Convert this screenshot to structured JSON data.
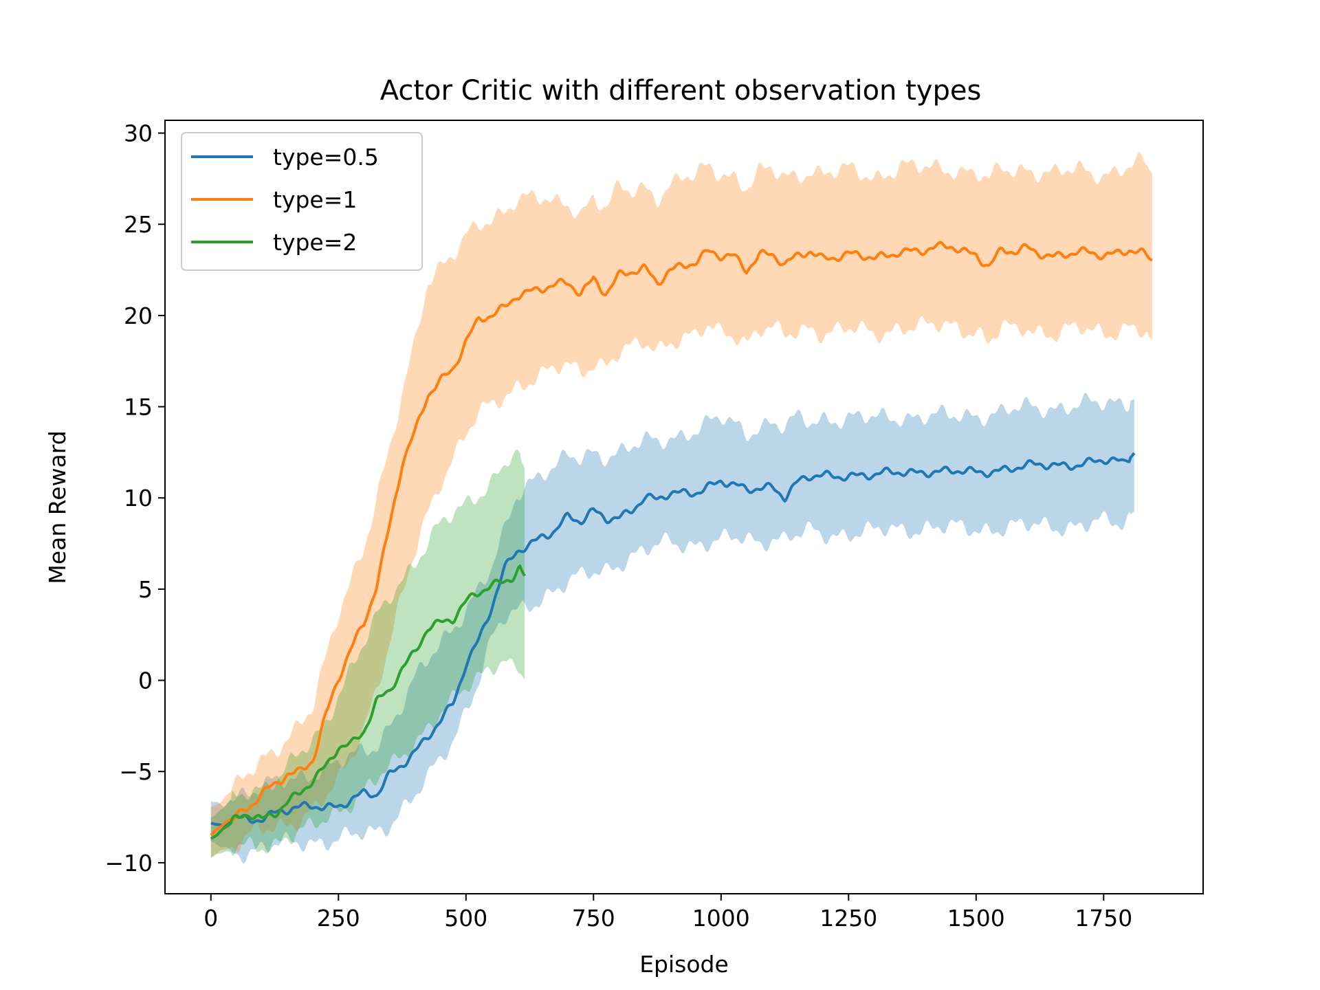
{
  "chart_data": {
    "type": "line",
    "title": "Actor Critic with different observation types",
    "xlabel": "Episode",
    "ylabel": "Mean Reward",
    "xlim": [
      -90,
      1945
    ],
    "ylim": [
      -11.7,
      30.7
    ],
    "xticks": [
      0,
      250,
      500,
      750,
      1000,
      1250,
      1500,
      1750
    ],
    "yticks": [
      -10,
      -5,
      0,
      5,
      10,
      15,
      20,
      25,
      30
    ],
    "xtick_labels": [
      "0",
      "250",
      "500",
      "750",
      "1000",
      "1250",
      "1500",
      "1750"
    ],
    "ytick_labels": [
      "−10",
      "−5",
      "0",
      "5",
      "10",
      "15",
      "20",
      "25",
      "30"
    ],
    "grid": false,
    "legend_position": "upper-left",
    "series": [
      {
        "name": "type=0.5",
        "color": "#1f77b4",
        "x": [
          0,
          25,
          50,
          75,
          100,
          150,
          200,
          250,
          300,
          325,
          350,
          375,
          400,
          425,
          450,
          475,
          500,
          525,
          550,
          575,
          600,
          625,
          650,
          675,
          700,
          725,
          750,
          775,
          800,
          825,
          850,
          875,
          900,
          950,
          1000,
          1025,
          1050,
          1075,
          1100,
          1125,
          1150,
          1175,
          1200,
          1250,
          1300,
          1350,
          1400,
          1450,
          1500,
          1550,
          1600,
          1650,
          1700,
          1750,
          1790,
          1810
        ],
        "y": [
          -7.9,
          -8.0,
          -7.4,
          -7.6,
          -7.5,
          -7.2,
          -6.8,
          -6.9,
          -6.3,
          -6.3,
          -5.1,
          -4.5,
          -3.9,
          -3.2,
          -2.3,
          -1.3,
          1.0,
          2.3,
          4.0,
          6.0,
          7.0,
          7.4,
          8.0,
          8.3,
          9.0,
          8.6,
          9.2,
          8.9,
          9.0,
          9.4,
          10.0,
          9.8,
          10.2,
          10.4,
          10.9,
          10.6,
          10.4,
          10.6,
          10.7,
          10.1,
          10.8,
          11.1,
          11.2,
          11.3,
          11.2,
          11.4,
          11.5,
          11.4,
          11.4,
          11.6,
          11.7,
          11.8,
          11.9,
          12.0,
          11.9,
          12.5
        ],
        "lower": [
          -8.8,
          -9.2,
          -9.4,
          -9.3,
          -9.2,
          -9.0,
          -8.8,
          -8.7,
          -8.5,
          -8.3,
          -7.8,
          -7.0,
          -6.3,
          -5.5,
          -4.4,
          -3.3,
          -1.5,
          0.1,
          2.2,
          3.3,
          3.7,
          4.2,
          4.6,
          5.0,
          5.3,
          5.6,
          5.9,
          6.1,
          6.5,
          6.8,
          7.0,
          7.3,
          7.6,
          7.5,
          7.6,
          7.7,
          7.8,
          7.6,
          7.9,
          7.7,
          7.9,
          8.1,
          8.0,
          8.1,
          8.1,
          8.3,
          8.4,
          8.3,
          8.3,
          8.4,
          8.4,
          8.5,
          8.5,
          8.6,
          8.6,
          9.3
        ],
        "upper": [
          -6.7,
          -6.8,
          -6.2,
          -6.1,
          -5.9,
          -5.5,
          -5.0,
          -4.6,
          -3.9,
          -3.5,
          -2.4,
          -1.3,
          0.0,
          1.0,
          2.0,
          3.0,
          4.0,
          5.0,
          6.0,
          8.0,
          10.2,
          11.0,
          11.5,
          11.7,
          12.2,
          12.0,
          12.5,
          12.4,
          12.6,
          12.8,
          13.0,
          13.0,
          13.3,
          13.8,
          14.3,
          14.0,
          13.6,
          14.0,
          14.2,
          13.8,
          14.3,
          14.1,
          14.4,
          14.4,
          14.3,
          14.5,
          14.5,
          14.4,
          14.6,
          14.7,
          14.9,
          15.0,
          15.1,
          15.1,
          15.3,
          15.5
        ]
      },
      {
        "name": "type=1",
        "color": "#ff7f0e",
        "x": [
          0,
          25,
          50,
          75,
          100,
          125,
          150,
          175,
          200,
          225,
          250,
          275,
          300,
          325,
          350,
          375,
          400,
          425,
          450,
          475,
          500,
          525,
          550,
          575,
          600,
          625,
          650,
          675,
          700,
          725,
          750,
          775,
          800,
          825,
          850,
          875,
          900,
          925,
          950,
          975,
          1000,
          1025,
          1050,
          1075,
          1100,
          1125,
          1150,
          1175,
          1200,
          1250,
          1300,
          1350,
          1400,
          1450,
          1500,
          1525,
          1550,
          1575,
          1600,
          1650,
          1700,
          1750,
          1800,
          1825,
          1845
        ],
        "y": [
          -8.5,
          -7.8,
          -7.4,
          -7.0,
          -6.3,
          -5.8,
          -5.1,
          -4.9,
          -4.3,
          -2.0,
          0.0,
          1.7,
          3.2,
          5.3,
          8.5,
          11.8,
          13.5,
          15.6,
          16.5,
          17.2,
          18.6,
          19.7,
          19.9,
          20.4,
          21.2,
          21.4,
          21.5,
          21.6,
          21.7,
          21.2,
          22.1,
          21.3,
          22.2,
          22.3,
          22.5,
          21.8,
          22.6,
          22.8,
          22.9,
          23.4,
          23.2,
          23.3,
          22.6,
          23.4,
          23.3,
          22.7,
          23.2,
          23.6,
          23.2,
          23.3,
          23.1,
          23.6,
          23.5,
          23.8,
          23.4,
          22.7,
          23.5,
          23.4,
          23.7,
          23.3,
          23.4,
          23.3,
          23.7,
          23.4,
          23.0
        ],
        "lower": [
          -9.6,
          -9.3,
          -9.0,
          -8.6,
          -8.3,
          -8.1,
          -7.8,
          -7.5,
          -7.1,
          -6.5,
          -5.6,
          -4.2,
          -2.5,
          -0.3,
          2.0,
          4.5,
          7.0,
          9.2,
          11.0,
          12.3,
          13.5,
          14.5,
          15.0,
          15.6,
          16.2,
          16.5,
          16.7,
          17.0,
          17.2,
          17.0,
          17.5,
          17.3,
          17.9,
          18.1,
          18.5,
          18.2,
          18.7,
          18.8,
          18.8,
          19.3,
          19.0,
          19.1,
          18.6,
          19.3,
          19.2,
          18.8,
          19.1,
          19.4,
          19.1,
          19.2,
          19.0,
          19.4,
          19.3,
          19.5,
          19.2,
          18.4,
          19.3,
          19.1,
          19.4,
          19.0,
          19.2,
          19.1,
          19.4,
          19.1,
          18.6
        ],
        "upper": [
          -7.0,
          -6.4,
          -5.8,
          -5.2,
          -4.5,
          -3.8,
          -3.0,
          -2.3,
          -1.5,
          1.0,
          3.6,
          5.6,
          7.5,
          10.0,
          12.5,
          15.5,
          18.5,
          22.0,
          22.8,
          23.4,
          24.2,
          24.8,
          25.2,
          25.8,
          26.6,
          26.5,
          26.3,
          26.0,
          26.1,
          25.7,
          26.6,
          25.9,
          26.9,
          26.7,
          27.0,
          26.6,
          27.2,
          27.6,
          27.5,
          28.1,
          27.8,
          27.7,
          27.1,
          27.8,
          27.9,
          27.5,
          27.7,
          28.1,
          27.8,
          27.9,
          27.6,
          28.2,
          28.0,
          28.1,
          27.9,
          27.3,
          28.0,
          27.9,
          28.1,
          27.8,
          27.9,
          27.8,
          28.2,
          28.3,
          27.8
        ]
      },
      {
        "name": "type=2",
        "color": "#2ca02c",
        "x": [
          0,
          25,
          50,
          75,
          100,
          125,
          150,
          175,
          200,
          225,
          250,
          275,
          300,
          325,
          350,
          375,
          400,
          425,
          450,
          475,
          500,
          525,
          550,
          575,
          590,
          605,
          615
        ],
        "y": [
          -8.7,
          -8.1,
          -7.7,
          -7.4,
          -7.6,
          -7.2,
          -6.6,
          -6.2,
          -5.6,
          -4.8,
          -3.6,
          -3.4,
          -2.7,
          -1.2,
          -0.7,
          0.6,
          1.6,
          3.0,
          3.2,
          3.3,
          4.2,
          4.8,
          5.3,
          5.5,
          5.7,
          6.2,
          5.7
        ],
        "lower": [
          -9.7,
          -9.5,
          -9.3,
          -9.1,
          -9.0,
          -8.9,
          -8.6,
          -8.4,
          -8.1,
          -7.6,
          -7.1,
          -6.6,
          -6.1,
          -5.5,
          -4.9,
          -4.1,
          -3.3,
          -2.5,
          -1.8,
          -1.2,
          -0.5,
          0.2,
          0.9,
          1.3,
          0.7,
          0.5,
          0.0
        ],
        "upper": [
          -7.5,
          -7.0,
          -6.5,
          -6.0,
          -5.8,
          -5.4,
          -4.8,
          -4.1,
          -3.4,
          -2.3,
          -0.6,
          0.7,
          2.0,
          3.3,
          4.5,
          5.6,
          6.6,
          7.6,
          8.5,
          9.0,
          9.6,
          10.3,
          11.0,
          11.8,
          12.4,
          12.2,
          11.5
        ]
      }
    ]
  }
}
